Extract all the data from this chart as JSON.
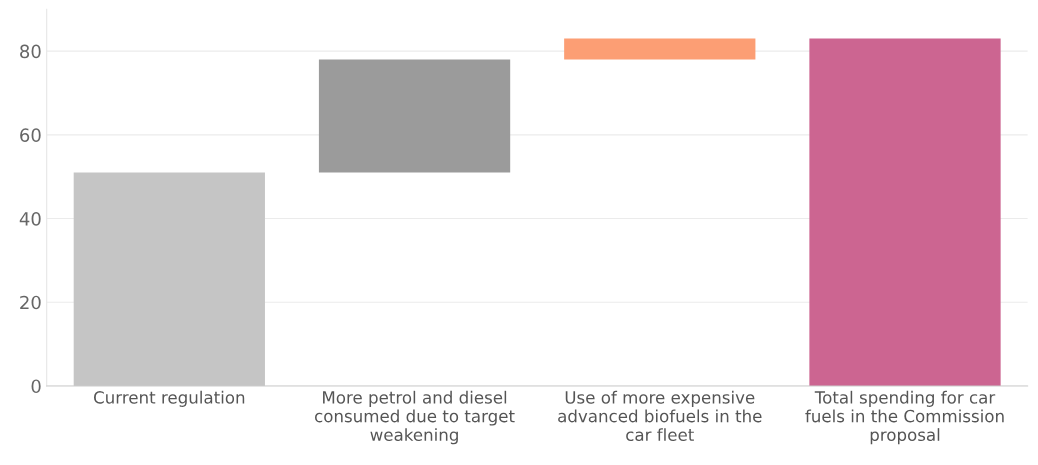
{
  "chart_data": {
    "type": "bar",
    "categories": [
      "Current regulation",
      "More petrol and diesel consumed due to target weakening",
      "Use of more expensive advanced biofuels in the car fleet",
      "Total spending for car fuels in the Commission proposal"
    ],
    "values": [
      51,
      27,
      5,
      83
    ],
    "base": [
      0,
      51,
      78,
      0
    ],
    "colors": [
      "#c5c5c5",
      "#9b9b9b",
      "#fc9e74",
      "#cc6591"
    ],
    "ylim": [
      0,
      90
    ],
    "yticks": [
      0,
      20,
      40,
      60,
      80
    ],
    "grid": "y",
    "legend": false
  }
}
